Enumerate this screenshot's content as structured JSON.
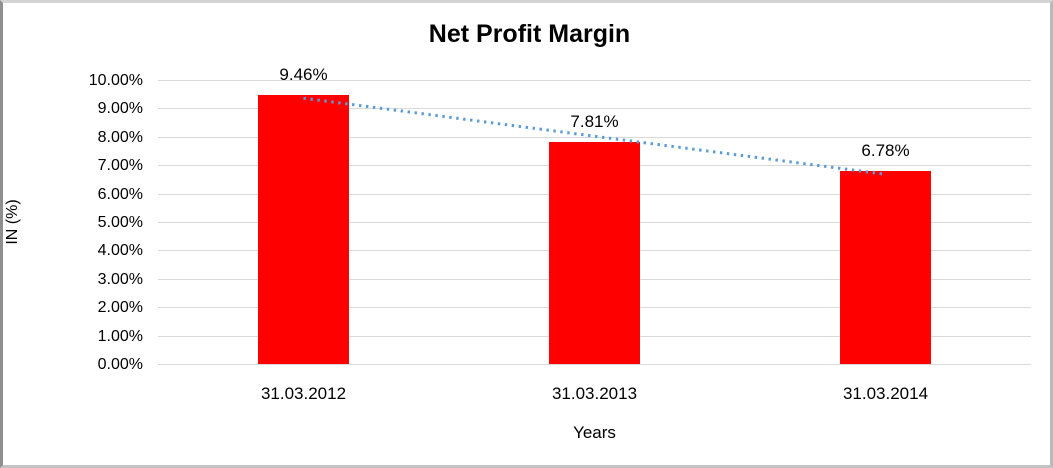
{
  "chart_data": {
    "type": "bar",
    "title": "Net Profit Margin",
    "xlabel": "Years",
    "ylabel": "IN (%)",
    "categories": [
      "31.03.2012",
      "31.03.2013",
      "31.03.2014"
    ],
    "values": [
      9.46,
      7.81,
      6.78
    ],
    "data_labels": [
      "9.46%",
      "7.81%",
      "6.78%"
    ],
    "ylim": [
      0,
      10
    ],
    "ytick_step": 1,
    "ytick_labels": [
      "0.00%",
      "1.00%",
      "2.00%",
      "3.00%",
      "4.00%",
      "5.00%",
      "6.00%",
      "7.00%",
      "8.00%",
      "9.00%",
      "10.00%"
    ],
    "grid": true,
    "legend": false,
    "bar_color": "#ff0000",
    "gridline_color": "#d9d9d9",
    "text_color": "#000000",
    "trendline": {
      "type": "linear",
      "style": "dotted",
      "color": "#5b9bd5",
      "start_value": 9.36,
      "end_value": 6.68
    }
  }
}
